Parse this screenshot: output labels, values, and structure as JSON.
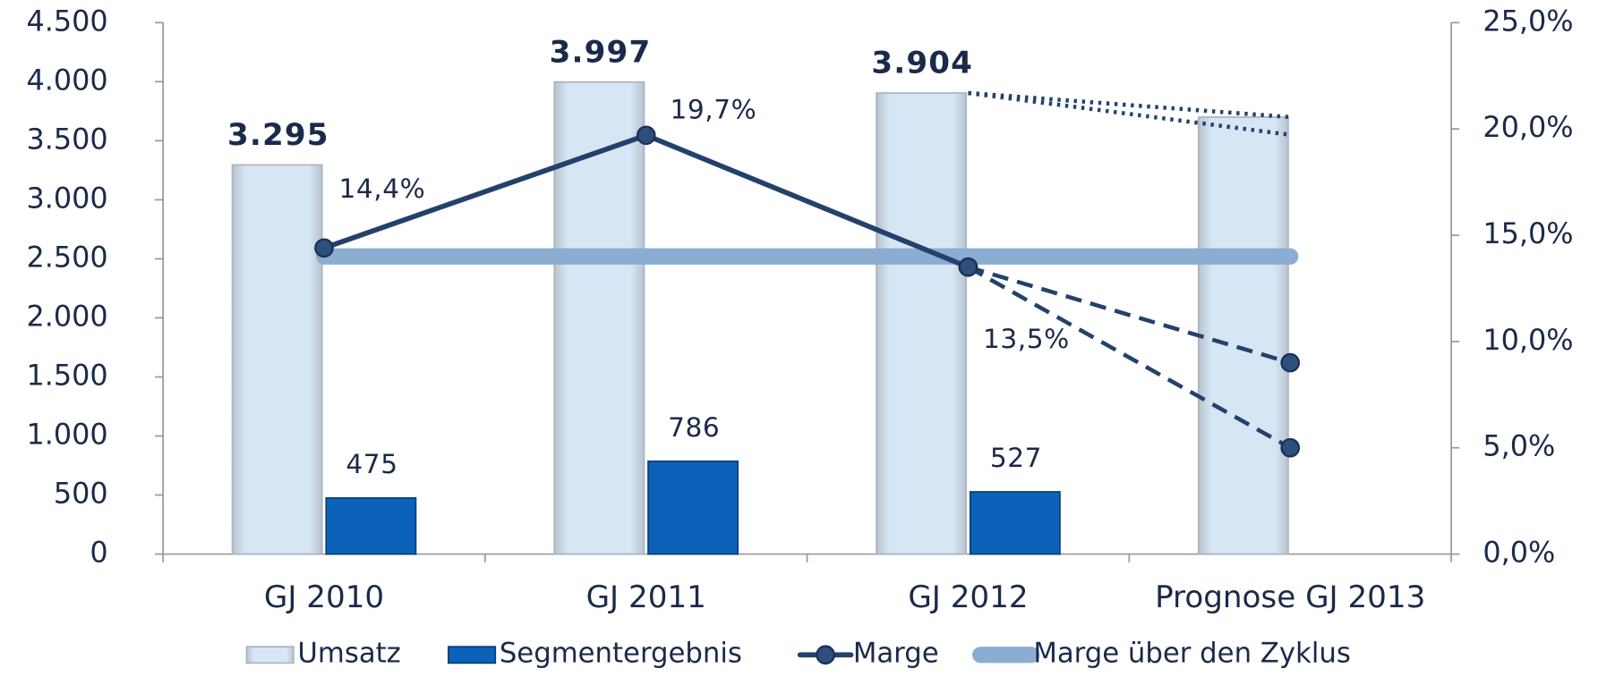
{
  "chart_data": {
    "type": "bar",
    "categories": [
      "GJ 2010",
      "GJ 2011",
      "GJ 2012",
      "Prognose GJ 2013"
    ],
    "series": [
      {
        "name": "Umsatz",
        "type": "bar",
        "color": "#d6e6f5",
        "values": [
          3295,
          3997,
          3904,
          3700
        ],
        "value_labels": [
          "3.295",
          "3.997",
          "3.904",
          null
        ]
      },
      {
        "name": "Segmentergebnis",
        "type": "bar",
        "color": "#0b62b8",
        "values": [
          475,
          786,
          527,
          null
        ]
      },
      {
        "name": "Marge",
        "type": "line",
        "axis": "y2",
        "color": "#24416b",
        "marker": true,
        "values": [
          14.4,
          19.7,
          13.5,
          null
        ],
        "value_labels": [
          "14,4%",
          "19,7%",
          "13,5%",
          null
        ]
      },
      {
        "name": "Marge über den Zyklus",
        "type": "line",
        "axis": "y2",
        "color": "#8badd1",
        "values": [
          14.0,
          14.0,
          14.0,
          14.0
        ]
      },
      {
        "type": "line",
        "axis": "y",
        "style": "dotted",
        "color": "#24416b",
        "values": [
          null,
          null,
          3904,
          3700
        ]
      },
      {
        "type": "line",
        "axis": "y",
        "style": "dotted",
        "color": "#24416b",
        "values": [
          null,
          null,
          3904,
          3550
        ]
      },
      {
        "type": "line",
        "axis": "y2",
        "style": "dashed",
        "color": "#24416b",
        "marker": true,
        "values": [
          null,
          null,
          13.5,
          9.0
        ]
      },
      {
        "type": "line",
        "axis": "y2",
        "style": "dashed",
        "color": "#24416b",
        "marker": true,
        "values": [
          null,
          null,
          13.5,
          5.0
        ]
      }
    ],
    "ylim": [
      0,
      4500
    ],
    "yticks": [
      0,
      500,
      {
        "value": 1000,
        "label": "1.000"
      },
      {
        "value": 1500,
        "label": "1.500"
      },
      {
        "value": 2000,
        "label": "2.000"
      },
      {
        "value": 2500,
        "label": "2.500"
      },
      {
        "value": 3000,
        "label": "3.000"
      },
      {
        "value": 3500,
        "label": "3.500"
      },
      {
        "value": 4000,
        "label": "4.000"
      },
      {
        "value": 4500,
        "label": "4.500"
      }
    ],
    "y2lim": [
      0,
      25
    ],
    "y2ticks": [
      {
        "value": 0,
        "label": "0,0%"
      },
      {
        "value": 5,
        "label": "5,0%"
      },
      {
        "value": 10,
        "label": "10,0%"
      },
      {
        "value": 15,
        "label": "15,0%"
      },
      {
        "value": 20,
        "label": "20,0%"
      },
      {
        "value": 25,
        "label": "25,0%"
      }
    ],
    "legend": "bottom",
    "grid": false
  }
}
